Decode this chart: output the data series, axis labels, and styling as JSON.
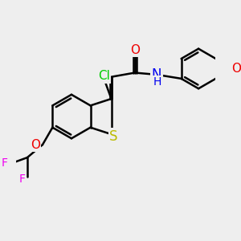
{
  "bg_color": "#eeeeee",
  "atom_colors": {
    "C": "#000000",
    "H": "#000000",
    "N": "#0000ee",
    "O": "#ee0000",
    "S": "#bbbb00",
    "F": "#ee00ee",
    "Cl": "#00cc00"
  },
  "bond_color": "#000000",
  "bond_width": 1.8,
  "font_size": 11
}
